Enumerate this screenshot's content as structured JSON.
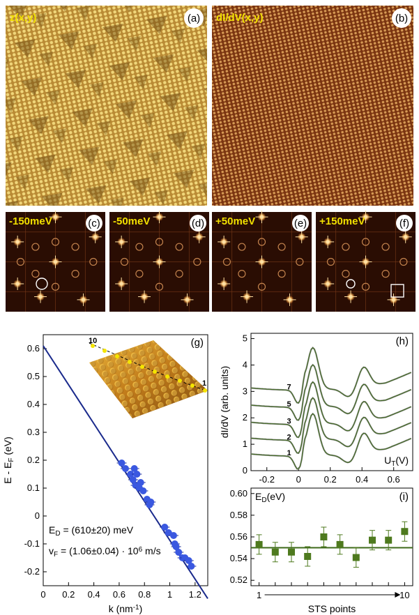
{
  "top_panels": {
    "a": {
      "label": "z(x,y)",
      "tag": "(a)"
    },
    "b": {
      "label": "dI/dV(x,y)",
      "tag": "(b)"
    }
  },
  "fft_panels": [
    {
      "energy": "-150meV",
      "tag": "(c)"
    },
    {
      "energy": "-50meV",
      "tag": "(d)"
    },
    {
      "energy": "+50meV",
      "tag": "(e)"
    },
    {
      "energy": "+150meV",
      "tag": "(f)"
    }
  ],
  "chart_data": [
    {
      "id": "g",
      "type": "scatter",
      "tag": "(g)",
      "xlabel": "k (nm",
      "xlabel_sup": "-1",
      "xlabel_end": ")",
      "ylabel": "E - E",
      "ylabel_sub": "F",
      "ylabel_end": " (eV)",
      "xlim": [
        0,
        1.3
      ],
      "ylim": [
        -0.25,
        0.65
      ],
      "xticks": [
        "0",
        "0.2",
        "0.4",
        "0.6",
        "0.8",
        "1",
        "1.2"
      ],
      "xtick_values": [
        0,
        0.2,
        0.4,
        0.6,
        0.8,
        1.0,
        1.2
      ],
      "yticks": [
        "-0.2",
        "-0.1",
        "0",
        "0.1",
        "0.2",
        "0.3",
        "0.4",
        "0.5",
        "0.6"
      ],
      "ytick_values": [
        -0.2,
        -0.1,
        0,
        0.1,
        0.2,
        0.3,
        0.4,
        0.5,
        0.6
      ],
      "fit_line": {
        "intercept": 0.61,
        "slope": -0.697
      },
      "points": [
        {
          "k": 0.62,
          "E": 0.19
        },
        {
          "k": 0.65,
          "E": 0.17
        },
        {
          "k": 0.69,
          "E": 0.15
        },
        {
          "k": 0.71,
          "E": 0.13
        },
        {
          "k": 0.72,
          "E": 0.17
        },
        {
          "k": 0.73,
          "E": 0.11
        },
        {
          "k": 0.74,
          "E": 0.15
        },
        {
          "k": 0.76,
          "E": 0.1
        },
        {
          "k": 0.77,
          "E": 0.12
        },
        {
          "k": 0.79,
          "E": 0.09
        },
        {
          "k": 0.82,
          "E": 0.06
        },
        {
          "k": 0.84,
          "E": 0.04
        },
        {
          "k": 0.85,
          "E": 0.05
        },
        {
          "k": 0.96,
          "E": -0.04
        },
        {
          "k": 0.99,
          "E": -0.06
        },
        {
          "k": 1.03,
          "E": -0.07
        },
        {
          "k": 1.04,
          "E": -0.1
        },
        {
          "k": 1.05,
          "E": -0.11
        },
        {
          "k": 1.07,
          "E": -0.13
        },
        {
          "k": 1.1,
          "E": -0.15
        },
        {
          "k": 1.12,
          "E": -0.15
        },
        {
          "k": 1.15,
          "E": -0.16
        },
        {
          "k": 1.17,
          "E": -0.18
        }
      ],
      "annotation_ED": {
        "prefix": "E",
        "sub": "D",
        "text": " = (610±20) meV"
      },
      "annotation_vF": {
        "prefix": "v",
        "sub": "F",
        "text": " = (1.06±0.04) · 10",
        "sup": "6",
        "unit": " m/s"
      },
      "inset_labels": {
        "start": "10",
        "end": "1"
      }
    },
    {
      "id": "h",
      "type": "line",
      "tag": "(h)",
      "ylabel": "dI/dV (arb. units)",
      "xlabel": "U",
      "xlabel_sub": "T",
      "xlabel_end": "(V)",
      "xlim": [
        -0.3,
        0.72
      ],
      "ylim": [
        0,
        5.2
      ],
      "xticks": [
        "-0.2",
        "0",
        "0.2",
        "0.4",
        "0.6"
      ],
      "xtick_values": [
        -0.2,
        0,
        0.2,
        0.4,
        0.6
      ],
      "yticks": [
        "0",
        "1",
        "2",
        "3",
        "4",
        "5"
      ],
      "ytick_values": [
        0,
        1,
        2,
        3,
        4,
        5
      ],
      "series": [
        {
          "name": "1",
          "offset": 0.0
        },
        {
          "name": "2",
          "offset": 0.6
        },
        {
          "name": "3",
          "offset": 1.2
        },
        {
          "name": "5",
          "offset": 1.85
        },
        {
          "name": "7",
          "offset": 2.5
        }
      ]
    },
    {
      "id": "i",
      "type": "scatter",
      "tag": "(i)",
      "ylabel": "E",
      "ylabel_sub": "D",
      "ylabel_end": "(eV)",
      "xlabel": "STS points",
      "xlim": [
        0.5,
        10.5
      ],
      "ylim": [
        0.515,
        0.605
      ],
      "yticks": [
        "0.52",
        "0.54",
        "0.56",
        "0.58",
        "0.60"
      ],
      "ytick_values": [
        0.52,
        0.54,
        0.56,
        0.58,
        0.6
      ],
      "x_start_label": "1",
      "x_end_label": "10",
      "mean_line": 0.55,
      "x": [
        1,
        2,
        3,
        4,
        5,
        6,
        7,
        8,
        9,
        10
      ],
      "values": [
        0.553,
        0.546,
        0.546,
        0.542,
        0.56,
        0.553,
        0.541,
        0.557,
        0.557,
        0.565
      ],
      "errors": [
        0.009,
        0.009,
        0.009,
        0.009,
        0.009,
        0.009,
        0.009,
        0.009,
        0.009,
        0.009
      ]
    }
  ],
  "colors": {
    "topo_base": "#c99a3c",
    "didv_base": "#9a4a1a",
    "fft_bg": "#2a0d03",
    "line_blue": "#1a2a8c",
    "point_blue": "#3a58e0",
    "green": "#4e7a1e",
    "green_line": "#3d6a1a"
  }
}
